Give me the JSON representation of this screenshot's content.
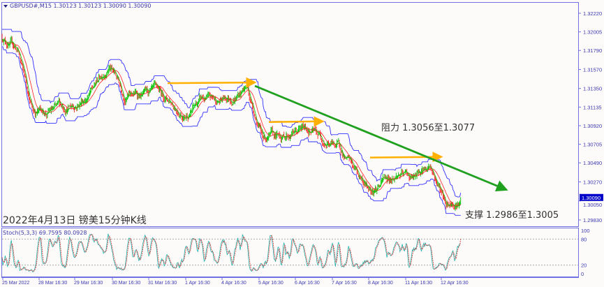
{
  "header": {
    "symbol_line": "GBPUSD#,M15  1.30123 1.30123 1.30090 1.30090",
    "menu_icon": "triangle-down-icon"
  },
  "annotations": {
    "title": "2022年4月13日 镑美15分钟K线",
    "resistance": "阻力 1.3056至1.3077",
    "support": "支撑 1.2986至1.3005"
  },
  "colors": {
    "frame": "#7070e0",
    "envelope": "#3030ff",
    "bull": "#00c000",
    "bear": "#ff2020",
    "trendline": "#1fa01f",
    "arrow": "#ffb000",
    "stoch_main": "#20b2aa",
    "stoch_signal": "#e03030",
    "price_tag_bg": "#0000c8"
  },
  "chart_data": [
    {
      "type": "candlestick",
      "title": "GBPUSD#,M15",
      "ylim": [
        1.29749,
        1.32333
      ],
      "y_ticks": [
        "1.32220",
        "1.32005",
        "1.31790",
        "1.31570",
        "1.31350",
        "1.31135",
        "1.30920",
        "1.30705",
        "1.30490",
        "1.30270",
        "1.30050",
        "1.29830"
      ],
      "current_price": "1.30090",
      "x_tick_labels": [
        "25 Mar 2022",
        "28 Mar 16:30",
        "29 Mar 16:30",
        "30 Mar 16:30",
        "31 Mar 16:30",
        "1 Apr 16:30",
        "4 Apr 16:30",
        "5 Apr 16:30",
        "6 Apr 16:30",
        "7 Apr 16:30",
        "8 Apr 16:30",
        "11 Apr 16:30",
        "12 Apr 16:30"
      ],
      "approx_close_path": [
        1.3195,
        1.318,
        1.311,
        1.3108,
        1.3112,
        1.312,
        1.3135,
        1.3165,
        1.313,
        1.3128,
        1.3125,
        1.312,
        1.3108,
        1.3122,
        1.3118,
        1.3125,
        1.3138,
        1.3082,
        1.3075,
        1.3085,
        1.3088,
        1.3078,
        1.3068,
        1.304,
        1.302,
        1.303,
        1.3036,
        1.303,
        1.3045,
        1.3005,
        1.3009
      ],
      "resistance_arrows": [
        {
          "from": "31 Mar 16:30",
          "to": "4 Apr 16:30",
          "price": 1.3142
        },
        {
          "from": "5 Apr 16:30",
          "to": "7 Apr",
          "price": 1.3097
        },
        {
          "from": "8 Apr 16:30",
          "to": "12 Apr 16:30",
          "price": 1.3056
        }
      ],
      "trendline": {
        "from_price": 1.3138,
        "to_price": 1.3018
      }
    },
    {
      "type": "line",
      "title": "Stoch(5,3,3) 69.7595 80.0928",
      "indicator": "Stoch(5,3,3)",
      "main_value": 69.7595,
      "signal_value": 80.0928,
      "ylim": [
        0,
        100
      ],
      "y_ticks": [
        "100",
        "80",
        "20",
        "0"
      ],
      "levels": [
        80,
        20
      ]
    }
  ]
}
